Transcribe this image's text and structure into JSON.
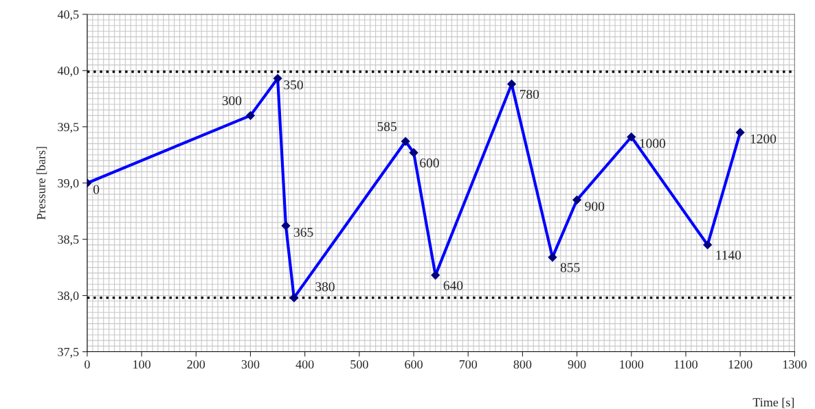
{
  "chart_data": {
    "type": "line",
    "xlabel": "Time [s]",
    "ylabel": "Pressure [bars]",
    "x": [
      0,
      300,
      350,
      365,
      380,
      585,
      600,
      640,
      780,
      855,
      900,
      1000,
      1140,
      1200
    ],
    "series": [
      {
        "color": "#0000ff",
        "values": [
          39.0,
          39.6,
          39.93,
          38.62,
          37.98,
          39.37,
          39.27,
          38.18,
          39.88,
          38.34,
          38.85,
          39.41,
          38.45,
          39.45
        ]
      }
    ],
    "annotations": [
      {
        "text": "0",
        "x": 0,
        "y": 39.0
      },
      {
        "text": "300",
        "x": 300,
        "y": 39.6
      },
      {
        "text": "350",
        "x": 350,
        "y": 39.93
      },
      {
        "text": "365",
        "x": 365,
        "y": 38.62
      },
      {
        "text": "380",
        "x": 380,
        "y": 37.98
      },
      {
        "text": "585",
        "x": 585,
        "y": 39.37
      },
      {
        "text": "600",
        "x": 600,
        "y": 39.27
      },
      {
        "text": "640",
        "x": 640,
        "y": 38.18
      },
      {
        "text": "780",
        "x": 780,
        "y": 39.88
      },
      {
        "text": "855",
        "x": 855,
        "y": 38.34
      },
      {
        "text": "900",
        "x": 900,
        "y": 38.85
      },
      {
        "text": "1000",
        "x": 1000,
        "y": 39.41
      },
      {
        "text": "1140",
        "x": 1140,
        "y": 38.45
      },
      {
        "text": "1200",
        "x": 1200,
        "y": 39.45
      }
    ],
    "marker": "diamond",
    "line_style": "solid",
    "grid": true,
    "legend": false,
    "xlim": [
      0,
      1300
    ],
    "xticks": [
      0,
      100,
      200,
      300,
      400,
      500,
      600,
      700,
      800,
      900,
      1000,
      1100,
      1200,
      1300
    ],
    "ylim": [
      37.5,
      40.5
    ],
    "yticks": [
      {
        "value": 37.5,
        "label": "37,5"
      },
      {
        "value": 38.0,
        "label": "38,0"
      },
      {
        "value": 38.5,
        "label": "38,5"
      },
      {
        "value": 39.0,
        "label": "39,0"
      },
      {
        "value": 39.5,
        "label": "39,5"
      },
      {
        "value": 40.0,
        "label": "40,0"
      },
      {
        "value": 40.5,
        "label": "40,5"
      }
    ],
    "ref_lines": [
      {
        "axis": "y",
        "value": 39.99,
        "color": "#000000",
        "line_style": "dotted"
      },
      {
        "axis": "y",
        "value": 37.98,
        "color": "#000000",
        "line_style": "dotted"
      }
    ]
  }
}
